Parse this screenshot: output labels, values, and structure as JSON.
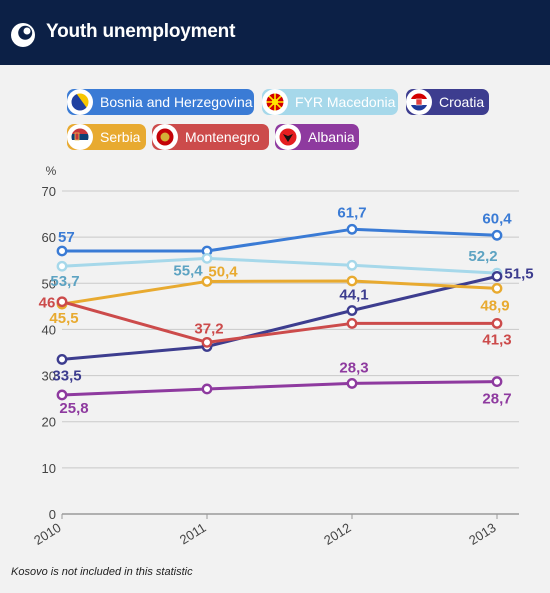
{
  "header": {
    "title": "Youth unemployment",
    "bg_color": "#0c2046"
  },
  "legend": [
    {
      "label": "Bosnia and Herzegovina",
      "color": "#3a7bd5",
      "icon": "bosnia-flag-icon"
    },
    {
      "label": "FYR Macedonia",
      "color": "#a6d8ea",
      "icon": "macedonia-flag-icon"
    },
    {
      "label": "Croatia",
      "color": "#3d3d8f",
      "icon": "croatia-flag-icon"
    },
    {
      "label": "Serbia",
      "color": "#e8aa30",
      "icon": "serbia-flag-icon"
    },
    {
      "label": "Montenegro",
      "color": "#cc4b4b",
      "icon": "montenegro-flag-icon"
    },
    {
      "label": "Albania",
      "color": "#8e3a9f",
      "icon": "albania-flag-icon"
    }
  ],
  "chart_data": {
    "type": "line",
    "ylabel": "%",
    "x": [
      "2010",
      "2011",
      "2012",
      "2013"
    ],
    "ylim": [
      0,
      70
    ],
    "yticks": [
      0,
      10,
      20,
      30,
      40,
      50,
      60,
      70
    ],
    "grid": true,
    "series": [
      {
        "name": "Bosnia and Herzegovina",
        "color": "#3a7bd5",
        "values": [
          57,
          57,
          61.7,
          60.4
        ],
        "labels": [
          "57",
          "",
          "61,7",
          "60,4"
        ]
      },
      {
        "name": "FYR Macedonia",
        "color": "#a6d8ea",
        "label_color": "#5da3c2",
        "values": [
          53.7,
          55.4,
          53.9,
          52.2
        ],
        "labels": [
          "53,7",
          "55,4",
          "",
          "52,2"
        ]
      },
      {
        "name": "Croatia",
        "color": "#3d3d8f",
        "values": [
          33.5,
          36.3,
          44.1,
          51.5
        ],
        "labels": [
          "33,5",
          "",
          "44,1",
          "51,5"
        ]
      },
      {
        "name": "Serbia",
        "color": "#e8aa30",
        "values": [
          45.5,
          50.4,
          50.5,
          48.9
        ],
        "labels": [
          "45,5",
          "50,4",
          "",
          "48,9"
        ]
      },
      {
        "name": "Montenegro",
        "color": "#cc4b4b",
        "values": [
          46,
          37.2,
          41.3,
          41.3
        ],
        "labels": [
          "46",
          "37,2",
          "",
          "41,3"
        ]
      },
      {
        "name": "Albania",
        "color": "#8e3a9f",
        "values": [
          25.8,
          27.1,
          28.3,
          28.7
        ],
        "labels": [
          "25,8",
          "",
          "28,3",
          "28,7"
        ]
      }
    ]
  },
  "footnote": "Kosovo is not included in this statistic"
}
